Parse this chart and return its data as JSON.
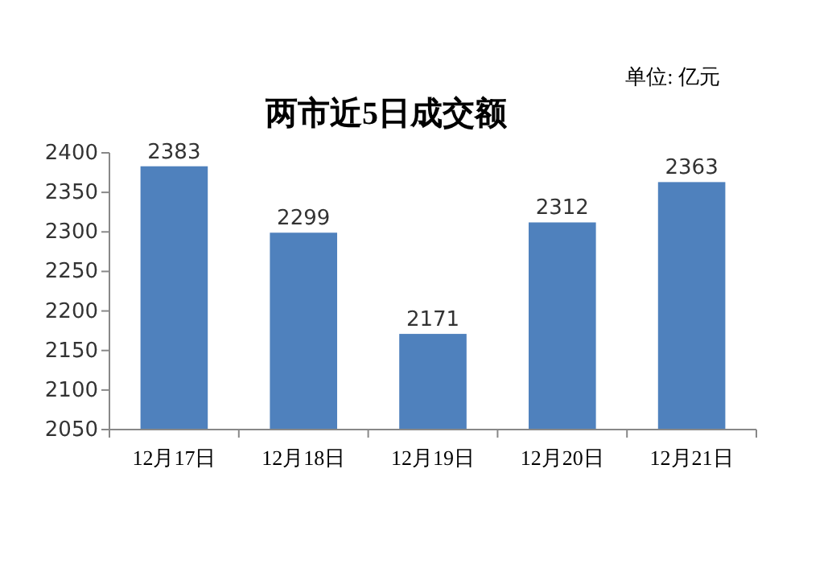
{
  "chart_data": {
    "type": "bar",
    "title": "两市近5日成交额",
    "annotations": [
      "单位: 亿元"
    ],
    "categories": [
      "12月17日",
      "12月18日",
      "12月19日",
      "12月20日",
      "12月21日"
    ],
    "values": [
      2383,
      2299,
      2171,
      2312,
      2363
    ],
    "color": "#4f81bd",
    "ylim": [
      2050,
      2400
    ],
    "yticks": [
      2050,
      2100,
      2150,
      2200,
      2250,
      2300,
      2350,
      2400
    ],
    "grid": false,
    "data_labels": true
  }
}
